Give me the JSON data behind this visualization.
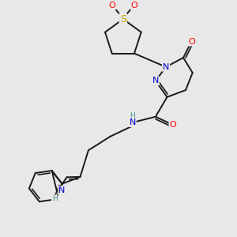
{
  "bg_color": "#e8e8e8",
  "bond_color": "#1a1a1a",
  "bw": 1.4,
  "atom_colors": {
    "N": "#0000cc",
    "O": "#ff0000",
    "S": "#ccaa00",
    "NH_teal": "#4a9090",
    "C": "#1a1a1a"
  },
  "fs": 8.0,
  "fsh": 6.5
}
